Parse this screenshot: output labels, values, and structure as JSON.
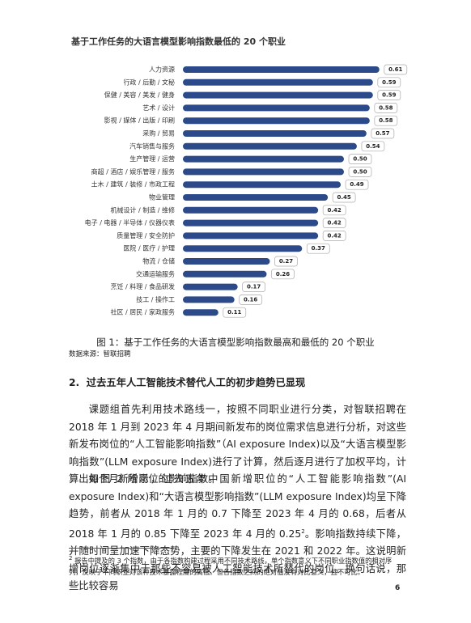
{
  "chart_data": {
    "type": "bar",
    "orientation": "horizontal",
    "title": "基于工作任务的大语言模型影响指数最低的 20 个职业",
    "color": "#2c4a8a",
    "categories": [
      "人力资源",
      "行政 / 后勤 / 文秘",
      "保健 / 美容 / 美发 / 健身",
      "艺术 / 设计",
      "影视 / 媒体 / 出版 / 印刷",
      "采购 / 贸易",
      "汽车销售与服务",
      "生产管理 / 运营",
      "商超 / 酒店 / 娱乐管理 / 服务",
      "土木 / 建筑 / 装修 / 市政工程",
      "物业管理",
      "机械设计 / 制造 / 维修",
      "电子 / 电器 / 半导体 / 仪器仪表",
      "质量管理 / 安全防护",
      "医院 / 医疗 / 护理",
      "物流 / 仓储",
      "交通运输服务",
      "烹饪 / 料理 / 食品研发",
      "技工 / 操作工",
      "社区 / 居民 / 家政服务"
    ],
    "values": [
      0.61,
      0.59,
      0.59,
      0.58,
      0.58,
      0.57,
      0.54,
      0.5,
      0.5,
      0.49,
      0.45,
      0.42,
      0.42,
      0.42,
      0.37,
      0.27,
      0.26,
      0.17,
      0.16,
      0.11
    ],
    "value_labels": [
      "0.61",
      "0.59",
      "0.59",
      "0.58",
      "0.58",
      "0.57",
      "0.54",
      "0.50",
      "0.50",
      "0.49",
      "0.45",
      "0.42",
      "0.42",
      "0.42",
      "0.37",
      "0.27",
      "0.26",
      "0.17",
      "0.16",
      "0.11"
    ]
  },
  "caption": "图 1：基于工作任务的大语言模型影响指数最高和最低的 20 个职业",
  "source": "数据来源：智联招聘",
  "section": {
    "number": "2.",
    "title": "过去五年人工智能技术替代人工的初步趋势已显现"
  },
  "paragraphs": [
    [
      "课题组首先利用技术路线一，按照不同职业进行分类，对智联招聘在 2018 年 1 月到 2023 年 4 月期间新发布的岗位需求信息进行分析，对这些新发布岗位的“人工智能影响指数”（AI exposure Index)以及“大语言模型影响指数”(LLM exposure Index)进行了计算，然后逐月进行了加权平均，计算出每个月新增岗位的影响指数。"
    ],
    [
      "如图 2 所示，过去五年中国新增职位的“人工智能影响指数”(AI exposure Index)和“大语言模型影响指数”(LLM exposure Index)均呈下降趋势，前者从 2018 年 1 月的 0.7 下降至 2023 年 4 月的 0.68，后者从 2018 年 1 月的 0.85 下降至 2023 年 4 月的 0.25",
      "2",
      "。影响指数持续下降，并随时间呈加速下降态势，主要的下降发生在 2021 和 2022 年。这说明新增岗位逐渐集中于那些不容易被人工智能技术所替代的岗位。换句话说，那些比较容易"
    ]
  ],
  "footnote": {
    "marker": "2",
    "text": " 报告中提及的 3 个指数，由于各指数构建过程采用不同技术路线，单个指数意义下不同职业指数值的相对序列，反映了不同职业对该种技术暴露程度的高低。但各指数之间的绝对值没有对比意义，且不可比。"
  },
  "page_number": "6"
}
